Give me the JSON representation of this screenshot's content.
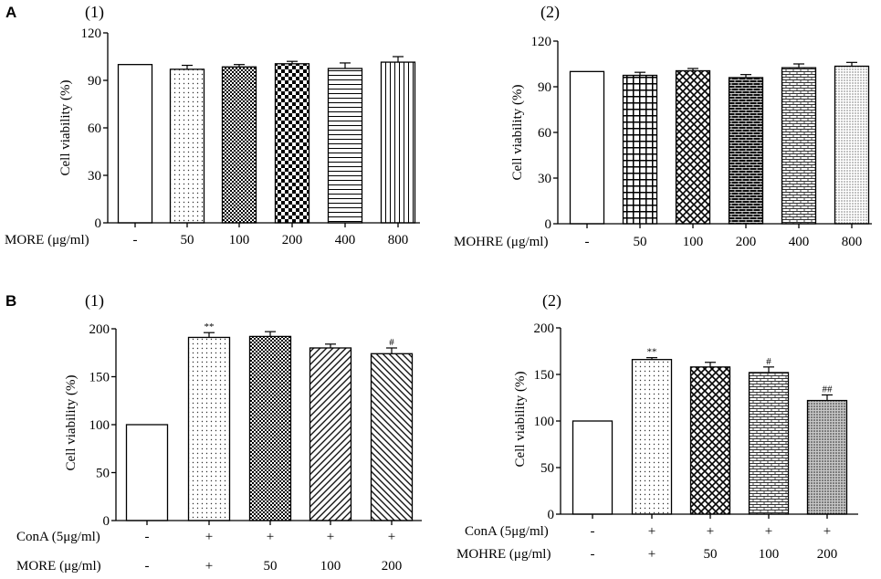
{
  "section_labels": [
    "A",
    "B"
  ],
  "chart_data": [
    {
      "type": "bar",
      "panel": "(1)",
      "ylabel": "Cell viability (%)",
      "xlabel": "MORE (μg/ml)",
      "categories": [
        "-",
        "50",
        "100",
        "200",
        "400",
        "800"
      ],
      "values": [
        100,
        97,
        98.5,
        100.5,
        97.5,
        101.5
      ],
      "errors": [
        0,
        2.5,
        1.5,
        1.5,
        3.5,
        3.5
      ],
      "ylim": [
        0,
        120
      ],
      "yticks": [
        0,
        30,
        60,
        90,
        120
      ]
    },
    {
      "type": "bar",
      "panel": "(2)",
      "ylabel": "Cell viability (%)",
      "xlabel": "MOHRE (μg/ml)",
      "categories": [
        "-",
        "50",
        "100",
        "200",
        "400",
        "800"
      ],
      "values": [
        100,
        97.5,
        100.5,
        96,
        102.5,
        103.5
      ],
      "errors": [
        0,
        2,
        1.5,
        2,
        2.5,
        2.5
      ],
      "ylim": [
        0,
        120
      ],
      "yticks": [
        0,
        30,
        60,
        90,
        120
      ]
    },
    {
      "type": "bar",
      "panel": "(1)",
      "ylabel": "Cell viability (%)",
      "treatment_row": {
        "label": "ConA (5μg/ml)",
        "values": [
          "-",
          "+",
          "+",
          "+",
          "+"
        ]
      },
      "xlabel": "MORE (μg/ml)",
      "categories": [
        "-",
        "+",
        "50",
        "100",
        "200"
      ],
      "values": [
        100,
        191,
        192,
        180,
        174
      ],
      "errors": [
        0,
        5,
        5,
        4,
        6
      ],
      "annotations": [
        null,
        "**",
        null,
        null,
        "#"
      ],
      "ylim": [
        0,
        200
      ],
      "yticks": [
        0,
        50,
        100,
        150,
        200
      ]
    },
    {
      "type": "bar",
      "panel": "(2)",
      "ylabel": "Cell viability (%)",
      "treatment_row": {
        "label": "ConA (5μg/ml)",
        "values": [
          "-",
          "+",
          "+",
          "+",
          "+"
        ]
      },
      "xlabel": "MOHRE (μg/ml)",
      "categories": [
        "-",
        "+",
        "50",
        "100",
        "200"
      ],
      "values": [
        100,
        166,
        158,
        152,
        122
      ],
      "errors": [
        0,
        2,
        5,
        6,
        6
      ],
      "annotations": [
        null,
        "**",
        null,
        "#",
        "##"
      ],
      "ylim": [
        0,
        200
      ],
      "yticks": [
        0,
        50,
        100,
        150,
        200
      ]
    }
  ]
}
